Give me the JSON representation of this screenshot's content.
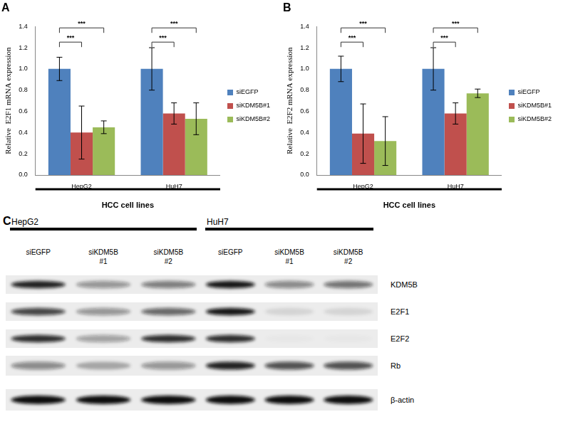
{
  "chart_data": [
    {
      "type": "bar",
      "title": "A",
      "x_label": "HCC cell lines",
      "y_label": "Relative  E2F1 mRNA expression",
      "categories": [
        "HepG2",
        "HuH7"
      ],
      "series": [
        {
          "name": "siEGFP",
          "color": "#4f81bd",
          "values": [
            1.0,
            1.0
          ],
          "errors": [
            0.11,
            0.2
          ]
        },
        {
          "name": "siKDM5B#1",
          "color": "#c0504d",
          "values": [
            0.4,
            0.58
          ],
          "errors": [
            0.25,
            0.1
          ]
        },
        {
          "name": "siKDM5B#2",
          "color": "#9bbb59",
          "values": [
            0.45,
            0.53
          ],
          "errors": [
            0.06,
            0.15
          ]
        }
      ],
      "ylim": [
        0,
        1.4
      ],
      "yticks": [
        {
          "value": 0,
          "label": "0.0"
        },
        0.2,
        0.4,
        0.6,
        0.8,
        {
          "value": 1,
          "label": "1.0"
        },
        1.2,
        1.4
      ],
      "grid": false,
      "legend": "right",
      "annotations": [
        {
          "text": "***",
          "category": "HepG2",
          "from": "siEGFP",
          "to": "siKDM5B#1"
        },
        {
          "text": "***",
          "category": "HepG2",
          "from": "siEGFP",
          "to": "siKDM5B#2"
        },
        {
          "text": "***",
          "category": "HuH7",
          "from": "siEGFP",
          "to": "siKDM5B#1"
        },
        {
          "text": "***",
          "category": "HuH7",
          "from": "siEGFP",
          "to": "siKDM5B#2"
        }
      ]
    },
    {
      "type": "bar",
      "title": "B",
      "x_label": "HCC cell lines",
      "y_label": "Relative  E2F2 mRNA expression",
      "categories": [
        "HepG2",
        "HuH7"
      ],
      "series": [
        {
          "name": "siEGFP",
          "color": "#4f81bd",
          "values": [
            1.0,
            1.0
          ],
          "errors": [
            0.12,
            0.2
          ]
        },
        {
          "name": "siKDM5B#1",
          "color": "#c0504d",
          "values": [
            0.39,
            0.58
          ],
          "errors": [
            0.28,
            0.1
          ]
        },
        {
          "name": "siKDM5B#2",
          "color": "#9bbb59",
          "values": [
            0.32,
            0.77
          ],
          "errors": [
            0.23,
            0.04
          ]
        }
      ],
      "ylim": [
        0,
        1.4
      ],
      "yticks": [
        {
          "value": 0,
          "label": "0.0"
        },
        0.2,
        0.4,
        0.6,
        0.8,
        {
          "value": 1,
          "label": "1.0"
        },
        1.2,
        1.4
      ],
      "grid": false,
      "legend": "right",
      "annotations": [
        {
          "text": "***",
          "category": "HepG2",
          "from": "siEGFP",
          "to": "siKDM5B#1"
        },
        {
          "text": "***",
          "category": "HepG2",
          "from": "siEGFP",
          "to": "siKDM5B#2"
        },
        {
          "text": "***",
          "category": "HuH7",
          "from": "siEGFP",
          "to": "siKDM5B#1"
        },
        {
          "text": "***",
          "category": "HuH7",
          "from": "siEGFP",
          "to": "siKDM5B#2"
        }
      ]
    }
  ],
  "blot": {
    "label": "C",
    "cell_lines": [
      "HepG2",
      "HuH7"
    ],
    "lanes": [
      "siEGFP",
      "siKDM5B #1",
      "siKDM5B #2"
    ],
    "proteins": [
      {
        "name": "KDM5B",
        "band_intensity": [
          [
            0.9,
            0.4,
            0.5
          ],
          [
            0.95,
            0.45,
            0.55
          ]
        ]
      },
      {
        "name": "E2F1",
        "band_intensity": [
          [
            0.75,
            0.4,
            0.6
          ],
          [
            0.95,
            0.1,
            0.1
          ]
        ]
      },
      {
        "name": "E2F2",
        "band_intensity": [
          [
            0.85,
            0.35,
            0.85
          ],
          [
            0.85,
            0.02,
            0.02
          ]
        ]
      },
      {
        "name": "Rb",
        "band_intensity": [
          [
            0.45,
            0.3,
            0.4
          ],
          [
            0.9,
            0.7,
            0.7
          ]
        ]
      },
      {
        "name": "β-actin",
        "band_intensity": [
          [
            1,
            1,
            1
          ],
          [
            1,
            1,
            1
          ]
        ]
      }
    ]
  }
}
